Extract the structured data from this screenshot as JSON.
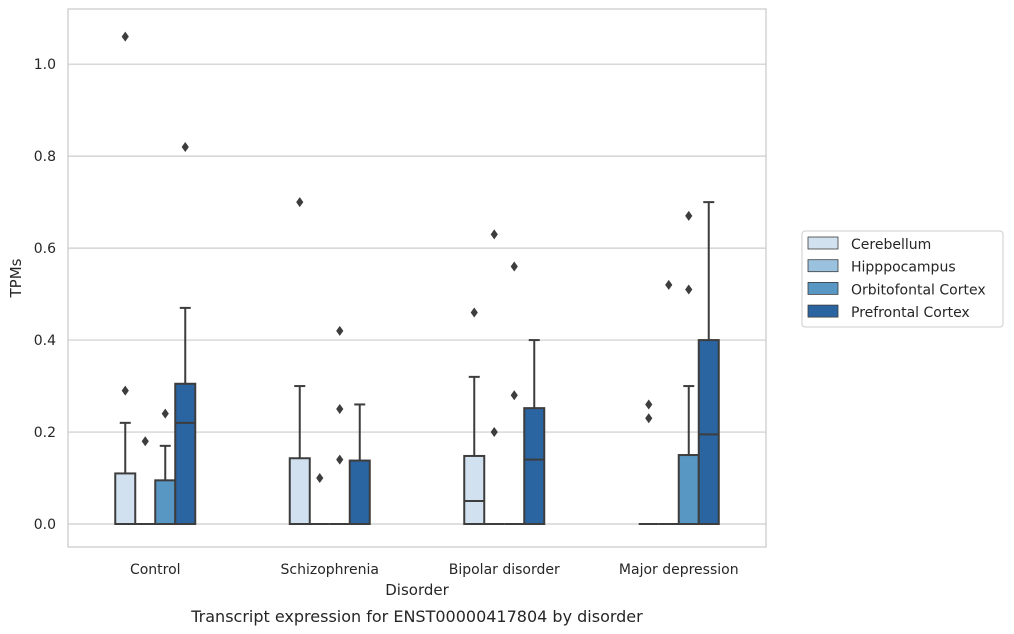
{
  "chart_data": {
    "type": "box",
    "caption": "Transcript expression for ENST00000417804 by disorder",
    "xlabel": "Disorder",
    "ylabel": "TPMs",
    "ylim": [
      -0.05,
      1.12
    ],
    "yticks": [
      0.0,
      0.2,
      0.4,
      0.6,
      0.8,
      1.0
    ],
    "ytick_labels": [
      "0.0",
      "0.2",
      "0.4",
      "0.6",
      "0.8",
      "1.0"
    ],
    "grid": "horizontal",
    "legend_position": "right",
    "categories": [
      "Control",
      "Schizophrenia",
      "Bipolar disorder",
      "Major depression"
    ],
    "series": [
      {
        "name": "Cerebellum",
        "color": "#d1e1f0",
        "boxes": [
          {
            "q1": 0.0,
            "median": 0.0,
            "q3": 0.11,
            "whisker_low": 0.0,
            "whisker_high": 0.22,
            "outliers": [
              0.29,
              1.06
            ]
          },
          {
            "q1": 0.0,
            "median": 0.0,
            "q3": 0.143,
            "whisker_low": 0.0,
            "whisker_high": 0.3,
            "outliers": [
              0.7
            ]
          },
          {
            "q1": 0.0,
            "median": 0.05,
            "q3": 0.148,
            "whisker_low": 0.0,
            "whisker_high": 0.32,
            "outliers": [
              0.46
            ]
          },
          {
            "q1": 0.0,
            "median": 0.0,
            "q3": 0.0,
            "whisker_low": 0.0,
            "whisker_high": 0.0,
            "outliers": [
              0.23,
              0.26
            ]
          }
        ]
      },
      {
        "name": "Hipppocampus",
        "color": "#9ac2de",
        "boxes": [
          {
            "q1": 0.0,
            "median": 0.0,
            "q3": 0.0,
            "whisker_low": 0.0,
            "whisker_high": 0.0,
            "outliers": [
              0.18
            ]
          },
          {
            "q1": 0.0,
            "median": 0.0,
            "q3": 0.0,
            "whisker_low": 0.0,
            "whisker_high": 0.0,
            "outliers": [
              0.1
            ]
          },
          {
            "q1": 0.0,
            "median": 0.0,
            "q3": 0.0,
            "whisker_low": 0.0,
            "whisker_high": 0.0,
            "outliers": [
              0.2,
              0.63
            ]
          },
          {
            "q1": 0.0,
            "median": 0.0,
            "q3": 0.0,
            "whisker_low": 0.0,
            "whisker_high": 0.0,
            "outliers": [
              0.52
            ]
          }
        ]
      },
      {
        "name": "Orbitofontal Cortex",
        "color": "#5897c4",
        "boxes": [
          {
            "q1": 0.0,
            "median": 0.0,
            "q3": 0.095,
            "whisker_low": 0.0,
            "whisker_high": 0.17,
            "outliers": [
              0.24
            ]
          },
          {
            "q1": 0.0,
            "median": 0.0,
            "q3": 0.0,
            "whisker_low": 0.0,
            "whisker_high": 0.0,
            "outliers": [
              0.14,
              0.25,
              0.42
            ]
          },
          {
            "q1": 0.0,
            "median": 0.0,
            "q3": 0.0,
            "whisker_low": 0.0,
            "whisker_high": 0.0,
            "outliers": [
              0.28,
              0.56
            ]
          },
          {
            "q1": 0.0,
            "median": 0.0,
            "q3": 0.15,
            "whisker_low": 0.0,
            "whisker_high": 0.3,
            "outliers": [
              0.51,
              0.67
            ]
          }
        ]
      },
      {
        "name": "Prefrontal Cortex",
        "color": "#2a64a1",
        "boxes": [
          {
            "q1": 0.0,
            "median": 0.22,
            "q3": 0.305,
            "whisker_low": 0.0,
            "whisker_high": 0.47,
            "outliers": [
              0.82
            ]
          },
          {
            "q1": 0.0,
            "median": 0.0,
            "q3": 0.138,
            "whisker_low": 0.0,
            "whisker_high": 0.26,
            "outliers": []
          },
          {
            "q1": 0.0,
            "median": 0.14,
            "q3": 0.252,
            "whisker_low": 0.0,
            "whisker_high": 0.4,
            "outliers": []
          },
          {
            "q1": 0.0,
            "median": 0.195,
            "q3": 0.4,
            "whisker_low": 0.0,
            "whisker_high": 0.7,
            "outliers": []
          }
        ]
      }
    ]
  }
}
